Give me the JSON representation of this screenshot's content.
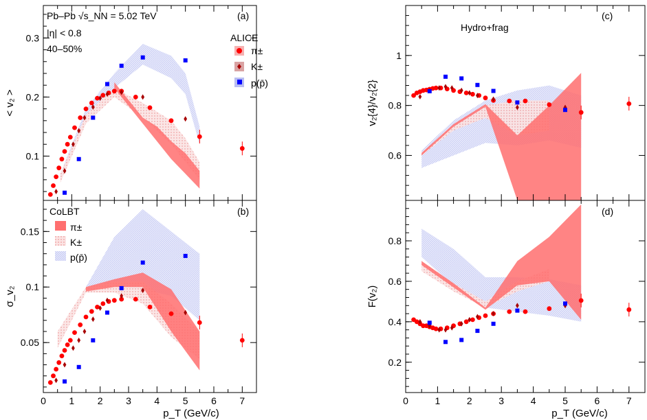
{
  "colors": {
    "pi": "#ff0000",
    "k": "#a80000",
    "p": "#0000ff",
    "pi_band": "#ff6f6f",
    "k_band": "#f3a6a6",
    "p_band": "#c9cdf7"
  },
  "chart_data": [
    {
      "id": "a",
      "type": "scatter",
      "panel_tag": "(a)",
      "ylabel": "< v₂ >",
      "xlim": [
        0,
        7.5
      ],
      "ylim": [
        0.025,
        0.355
      ],
      "yticks": [
        0.1,
        0.2,
        0.3
      ],
      "ytick_labels": [
        "0.1",
        "0.2",
        "0.3"
      ],
      "annotations": [
        "Pb–Pb √s_NN = 5.02 TeV",
        "|η| < 0.8",
        "40–50%"
      ],
      "legend_title": "ALICE",
      "legend": [
        "π±",
        "K±",
        "p(p̄)"
      ],
      "series": [
        {
          "name": "π±",
          "species": "pi",
          "x": [
            0.25,
            0.35,
            0.45,
            0.55,
            0.65,
            0.75,
            0.85,
            0.95,
            1.1,
            1.3,
            1.5,
            1.7,
            1.9,
            2.1,
            2.3,
            2.5,
            2.75,
            3.25,
            3.75,
            4.5,
            5.5,
            7.0
          ],
          "y": [
            0.035,
            0.05,
            0.065,
            0.08,
            0.095,
            0.108,
            0.12,
            0.132,
            0.148,
            0.165,
            0.18,
            0.19,
            0.198,
            0.203,
            0.207,
            0.21,
            0.21,
            0.2,
            0.182,
            0.16,
            0.133,
            0.113
          ]
        },
        {
          "name": "K±",
          "species": "k",
          "x": [
            0.45,
            0.75,
            1.05,
            1.25,
            1.45,
            1.75,
            2.0,
            2.25,
            2.75,
            3.5,
            5.0
          ],
          "y": [
            0.04,
            0.075,
            0.12,
            0.143,
            0.165,
            0.183,
            0.198,
            0.205,
            0.208,
            0.2,
            0.163
          ]
        },
        {
          "name": "p(p̄)",
          "species": "p",
          "x": [
            0.75,
            1.25,
            1.75,
            2.25,
            2.75,
            3.5,
            5.0
          ],
          "y": [
            0.038,
            0.095,
            0.165,
            0.222,
            0.253,
            0.267,
            0.262
          ]
        }
      ],
      "bands": [
        {
          "species": "p",
          "x": [
            0.6,
            1.5,
            2.5,
            3.5,
            4.5,
            5.0,
            5.5
          ],
          "low": [
            0.06,
            0.17,
            0.215,
            0.255,
            0.232,
            0.205,
            0.12
          ],
          "high": [
            0.07,
            0.18,
            0.24,
            0.29,
            0.27,
            0.24,
            0.15
          ]
        },
        {
          "species": "k",
          "x": [
            0.6,
            1.5,
            2.5,
            3.5,
            4.5,
            5.0,
            5.5
          ],
          "low": [
            0.055,
            0.155,
            0.2,
            0.165,
            0.12,
            0.09,
            0.06
          ],
          "high": [
            0.07,
            0.17,
            0.215,
            0.19,
            0.16,
            0.13,
            0.09
          ]
        },
        {
          "species": "pi",
          "x": [
            2.5,
            3.0,
            3.5,
            4.0,
            4.5,
            5.0,
            5.5
          ],
          "low": [
            0.215,
            0.185,
            0.155,
            0.125,
            0.095,
            0.07,
            0.045
          ],
          "high": [
            0.225,
            0.195,
            0.165,
            0.15,
            0.125,
            0.105,
            0.075
          ]
        }
      ]
    },
    {
      "id": "b",
      "type": "scatter",
      "panel_tag": "(b)",
      "ylabel": "σ_v₂",
      "xlabel": "p_T (GeV/c)",
      "xlim": [
        0,
        7.5
      ],
      "xticks": [
        0,
        1,
        2,
        3,
        4,
        5,
        6,
        7
      ],
      "xtick_labels": [
        "0",
        "1",
        "2",
        "3",
        "4",
        "5",
        "6",
        "7"
      ],
      "ylim": [
        0.005,
        0.178
      ],
      "yticks": [
        0.05,
        0.1,
        0.15
      ],
      "ytick_labels": [
        "0.05",
        "0.1",
        "0.15"
      ],
      "legend_title": "CoLBT",
      "legend": [
        "π±",
        "K±",
        "p(p̄)"
      ],
      "series": [
        {
          "name": "π±",
          "species": "pi",
          "x": [
            0.25,
            0.35,
            0.45,
            0.55,
            0.65,
            0.75,
            0.85,
            0.95,
            1.1,
            1.3,
            1.5,
            1.7,
            1.9,
            2.1,
            2.3,
            2.5,
            2.75,
            3.25,
            3.75,
            4.5,
            5.5,
            7.0
          ],
          "y": [
            0.014,
            0.02,
            0.026,
            0.032,
            0.038,
            0.043,
            0.048,
            0.052,
            0.059,
            0.066,
            0.073,
            0.078,
            0.082,
            0.085,
            0.087,
            0.088,
            0.089,
            0.089,
            0.082,
            0.076,
            0.068,
            0.052
          ]
        },
        {
          "name": "K±",
          "species": "k",
          "x": [
            0.45,
            0.75,
            1.05,
            1.25,
            1.45,
            1.75,
            2.0,
            2.25,
            2.75,
            3.5,
            5.0
          ],
          "y": [
            0.016,
            0.03,
            0.045,
            0.052,
            0.06,
            0.071,
            0.081,
            0.088,
            0.092,
            0.097,
            0.077
          ]
        },
        {
          "name": "p(p̄)",
          "species": "p",
          "x": [
            0.75,
            1.25,
            1.75,
            2.25,
            2.75,
            3.5,
            5.0
          ],
          "y": [
            0.015,
            0.028,
            0.052,
            0.077,
            0.099,
            0.122,
            0.128
          ]
        }
      ],
      "bands": [
        {
          "species": "p",
          "x": [
            1.5,
            2.5,
            3.5,
            4.5,
            5.5
          ],
          "low": [
            0.098,
            0.1,
            0.098,
            0.092,
            0.07
          ],
          "high": [
            0.1,
            0.145,
            0.17,
            0.15,
            0.13
          ]
        },
        {
          "species": "k",
          "x": [
            0.5,
            1.5,
            2.5,
            3.5,
            4.5,
            5.5
          ],
          "low": [
            0.045,
            0.095,
            0.095,
            0.085,
            0.055,
            0.035
          ],
          "high": [
            0.06,
            0.1,
            0.105,
            0.105,
            0.085,
            0.06
          ]
        },
        {
          "species": "pi",
          "x": [
            1.5,
            2.5,
            3.5,
            4.5,
            5.5
          ],
          "low": [
            0.096,
            0.1,
            0.1,
            0.06,
            0.025
          ],
          "high": [
            0.1,
            0.107,
            0.113,
            0.098,
            0.06
          ]
        }
      ]
    },
    {
      "id": "c",
      "type": "scatter",
      "panel_tag": "(c)",
      "ylabel": "v₂{4}/v₂{2}",
      "xlim": [
        0,
        7.5
      ],
      "ylim": [
        0.42,
        1.2
      ],
      "yticks": [
        0.6,
        0.8,
        1.0
      ],
      "ytick_labels": [
        "0.6",
        "0.8",
        "1"
      ],
      "annotations": [
        "Hydro+frag"
      ],
      "series": [
        {
          "name": "π±",
          "species": "pi",
          "x": [
            0.25,
            0.35,
            0.45,
            0.55,
            0.65,
            0.75,
            0.85,
            0.95,
            1.1,
            1.3,
            1.5,
            1.7,
            1.9,
            2.1,
            2.3,
            2.5,
            2.75,
            3.25,
            3.75,
            4.5,
            5.5,
            7.0
          ],
          "y": [
            0.84,
            0.85,
            0.855,
            0.86,
            0.862,
            0.865,
            0.868,
            0.87,
            0.87,
            0.866,
            0.86,
            0.855,
            0.85,
            0.845,
            0.84,
            0.83,
            0.82,
            0.818,
            0.818,
            0.803,
            0.772,
            0.807
          ]
        },
        {
          "name": "K±",
          "species": "k",
          "x": [
            0.45,
            0.75,
            1.05,
            1.25,
            1.45,
            1.75,
            2.0,
            2.25,
            2.75,
            3.5,
            5.0
          ],
          "y": [
            0.835,
            0.86,
            0.87,
            0.875,
            0.87,
            0.86,
            0.85,
            0.84,
            0.825,
            0.792,
            0.792
          ]
        },
        {
          "name": "p(p̄)",
          "species": "p",
          "x": [
            0.75,
            1.25,
            1.75,
            2.25,
            2.75,
            3.5,
            5.0
          ],
          "y": [
            0.857,
            0.915,
            0.908,
            0.882,
            0.858,
            0.812,
            0.782
          ]
        }
      ],
      "bands": [
        {
          "species": "p",
          "x": [
            0.5,
            1.5,
            2.5,
            3.5,
            4.5,
            5.5
          ],
          "low": [
            0.55,
            0.6,
            0.65,
            0.64,
            0.66,
            0.63
          ],
          "high": [
            0.62,
            0.74,
            0.82,
            0.86,
            0.88,
            0.84
          ]
        },
        {
          "species": "k",
          "x": [
            0.5,
            1.5,
            2.5,
            3.5,
            4.5
          ],
          "low": [
            0.6,
            0.7,
            0.75,
            0.68,
            0.7
          ],
          "high": [
            0.61,
            0.72,
            0.8,
            0.82,
            0.82
          ]
        },
        {
          "species": "pi",
          "x": [
            0.5,
            1.5,
            2.5,
            3.5,
            4.5,
            5.5
          ],
          "low": [
            0.6,
            0.715,
            0.795,
            0.42,
            0.42,
            0.42
          ],
          "high": [
            0.61,
            0.725,
            0.805,
            0.68,
            0.8,
            0.93
          ]
        }
      ]
    },
    {
      "id": "d",
      "type": "scatter",
      "panel_tag": "(d)",
      "ylabel": "F(v₂)",
      "xlabel": "p_T (GeV/c)",
      "xlim": [
        0,
        7.5
      ],
      "xticks": [
        0,
        1,
        2,
        3,
        4,
        5,
        6,
        7
      ],
      "xtick_labels": [
        "0",
        "1",
        "2",
        "3",
        "4",
        "5",
        "6",
        "7"
      ],
      "ylim": [
        0.05,
        1.0
      ],
      "yticks": [
        0.2,
        0.4,
        0.6,
        0.8
      ],
      "ytick_labels": [
        "0.2",
        "0.4",
        "0.6",
        "0.8"
      ],
      "series": [
        {
          "name": "π±",
          "species": "pi",
          "x": [
            0.25,
            0.35,
            0.45,
            0.55,
            0.65,
            0.75,
            0.85,
            0.95,
            1.1,
            1.3,
            1.5,
            1.7,
            1.9,
            2.1,
            2.3,
            2.5,
            2.75,
            3.25,
            3.75,
            4.5,
            5.5,
            7.0
          ],
          "y": [
            0.41,
            0.4,
            0.39,
            0.38,
            0.38,
            0.375,
            0.37,
            0.365,
            0.365,
            0.37,
            0.38,
            0.39,
            0.4,
            0.41,
            0.42,
            0.43,
            0.44,
            0.45,
            0.45,
            0.465,
            0.505,
            0.46
          ]
        },
        {
          "name": "K±",
          "species": "k",
          "x": [
            0.45,
            0.75,
            1.05,
            1.25,
            1.45,
            1.75,
            2.0,
            2.25,
            2.75,
            3.5,
            5.0
          ],
          "y": [
            0.4,
            0.38,
            0.36,
            0.36,
            0.37,
            0.39,
            0.41,
            0.425,
            0.44,
            0.48,
            0.48
          ]
        },
        {
          "name": "p(p̄)",
          "species": "p",
          "x": [
            0.75,
            1.25,
            1.75,
            2.25,
            2.75,
            3.5,
            5.0
          ],
          "y": [
            0.395,
            0.3,
            0.31,
            0.355,
            0.39,
            0.455,
            0.49
          ]
        }
      ],
      "bands": [
        {
          "species": "p",
          "x": [
            0.5,
            1.5,
            2.5,
            3.5,
            4.5,
            5.5
          ],
          "low": [
            0.72,
            0.58,
            0.47,
            0.45,
            0.43,
            0.4
          ],
          "high": [
            0.86,
            0.76,
            0.62,
            0.62,
            0.61,
            0.58
          ]
        },
        {
          "species": "k",
          "x": [
            0.5,
            1.5,
            2.5,
            3.5,
            4.5
          ],
          "low": [
            0.65,
            0.55,
            0.47,
            0.55,
            0.6
          ],
          "high": [
            0.7,
            0.59,
            0.5,
            0.6,
            0.66
          ]
        },
        {
          "species": "pi",
          "x": [
            0.5,
            1.5,
            2.5,
            3.5,
            4.5,
            5.5
          ],
          "low": [
            0.68,
            0.57,
            0.46,
            0.58,
            0.6,
            0.41
          ],
          "high": [
            0.7,
            0.59,
            0.47,
            0.7,
            0.82,
            0.98
          ]
        }
      ]
    }
  ]
}
